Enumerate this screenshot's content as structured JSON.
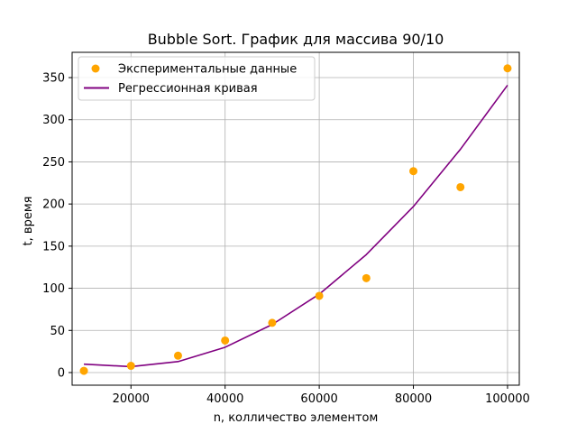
{
  "chart_data": {
    "type": "scatter",
    "title": "Bubble Sort. График для массива 90/10",
    "xlabel": "n, колличество элементом",
    "ylabel": "t, время",
    "xlim": [
      7500,
      102500
    ],
    "ylim": [
      -15,
      380
    ],
    "xticks": [
      20000,
      40000,
      60000,
      80000,
      100000
    ],
    "yticks": [
      0,
      50,
      100,
      150,
      200,
      250,
      300,
      350
    ],
    "grid": true,
    "legend_position": "upper-left",
    "series": [
      {
        "name": "Экспериментальные данные",
        "kind": "scatter",
        "color": "#ffa500",
        "x": [
          10000,
          20000,
          30000,
          40000,
          50000,
          60000,
          70000,
          80000,
          90000,
          100000
        ],
        "y": [
          2,
          8,
          20,
          38,
          59,
          91,
          112,
          239,
          220,
          361
        ]
      },
      {
        "name": "Регрессионная кривая",
        "kind": "line",
        "color": "#800080",
        "x": [
          10000,
          20000,
          30000,
          40000,
          50000,
          60000,
          70000,
          80000,
          90000,
          100000
        ],
        "y": [
          10,
          7,
          13,
          30,
          57,
          93,
          140,
          197,
          265,
          341
        ]
      }
    ]
  }
}
